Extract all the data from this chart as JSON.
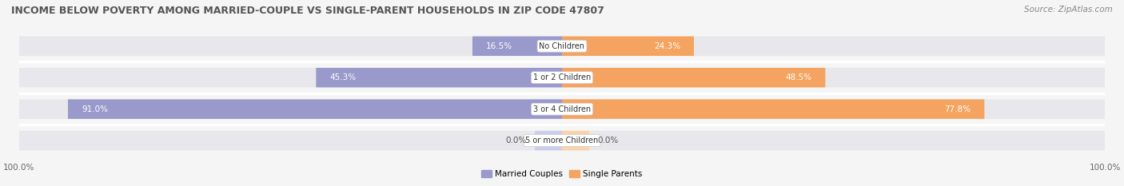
{
  "title": "INCOME BELOW POVERTY AMONG MARRIED-COUPLE VS SINGLE-PARENT HOUSEHOLDS IN ZIP CODE 47807",
  "source": "Source: ZipAtlas.com",
  "categories": [
    "No Children",
    "1 or 2 Children",
    "3 or 4 Children",
    "5 or more Children"
  ],
  "married_values": [
    16.5,
    45.3,
    91.0,
    0.0
  ],
  "single_values": [
    24.3,
    48.5,
    77.8,
    0.0
  ],
  "married_color": "#9999cc",
  "married_color_light": "#ccccee",
  "single_color": "#f4a460",
  "single_color_light": "#f9d4a8",
  "bar_bg_color": "#e8e8ec",
  "bar_height": 0.62,
  "max_val": 100.0,
  "married_label": "Married Couples",
  "single_label": "Single Parents",
  "title_fontsize": 9.0,
  "source_fontsize": 7.5,
  "label_fontsize": 7.5,
  "value_fontsize": 7.5,
  "cat_fontsize": 7.0,
  "background_color": "#f5f5f5",
  "zero_stub": 5.0
}
